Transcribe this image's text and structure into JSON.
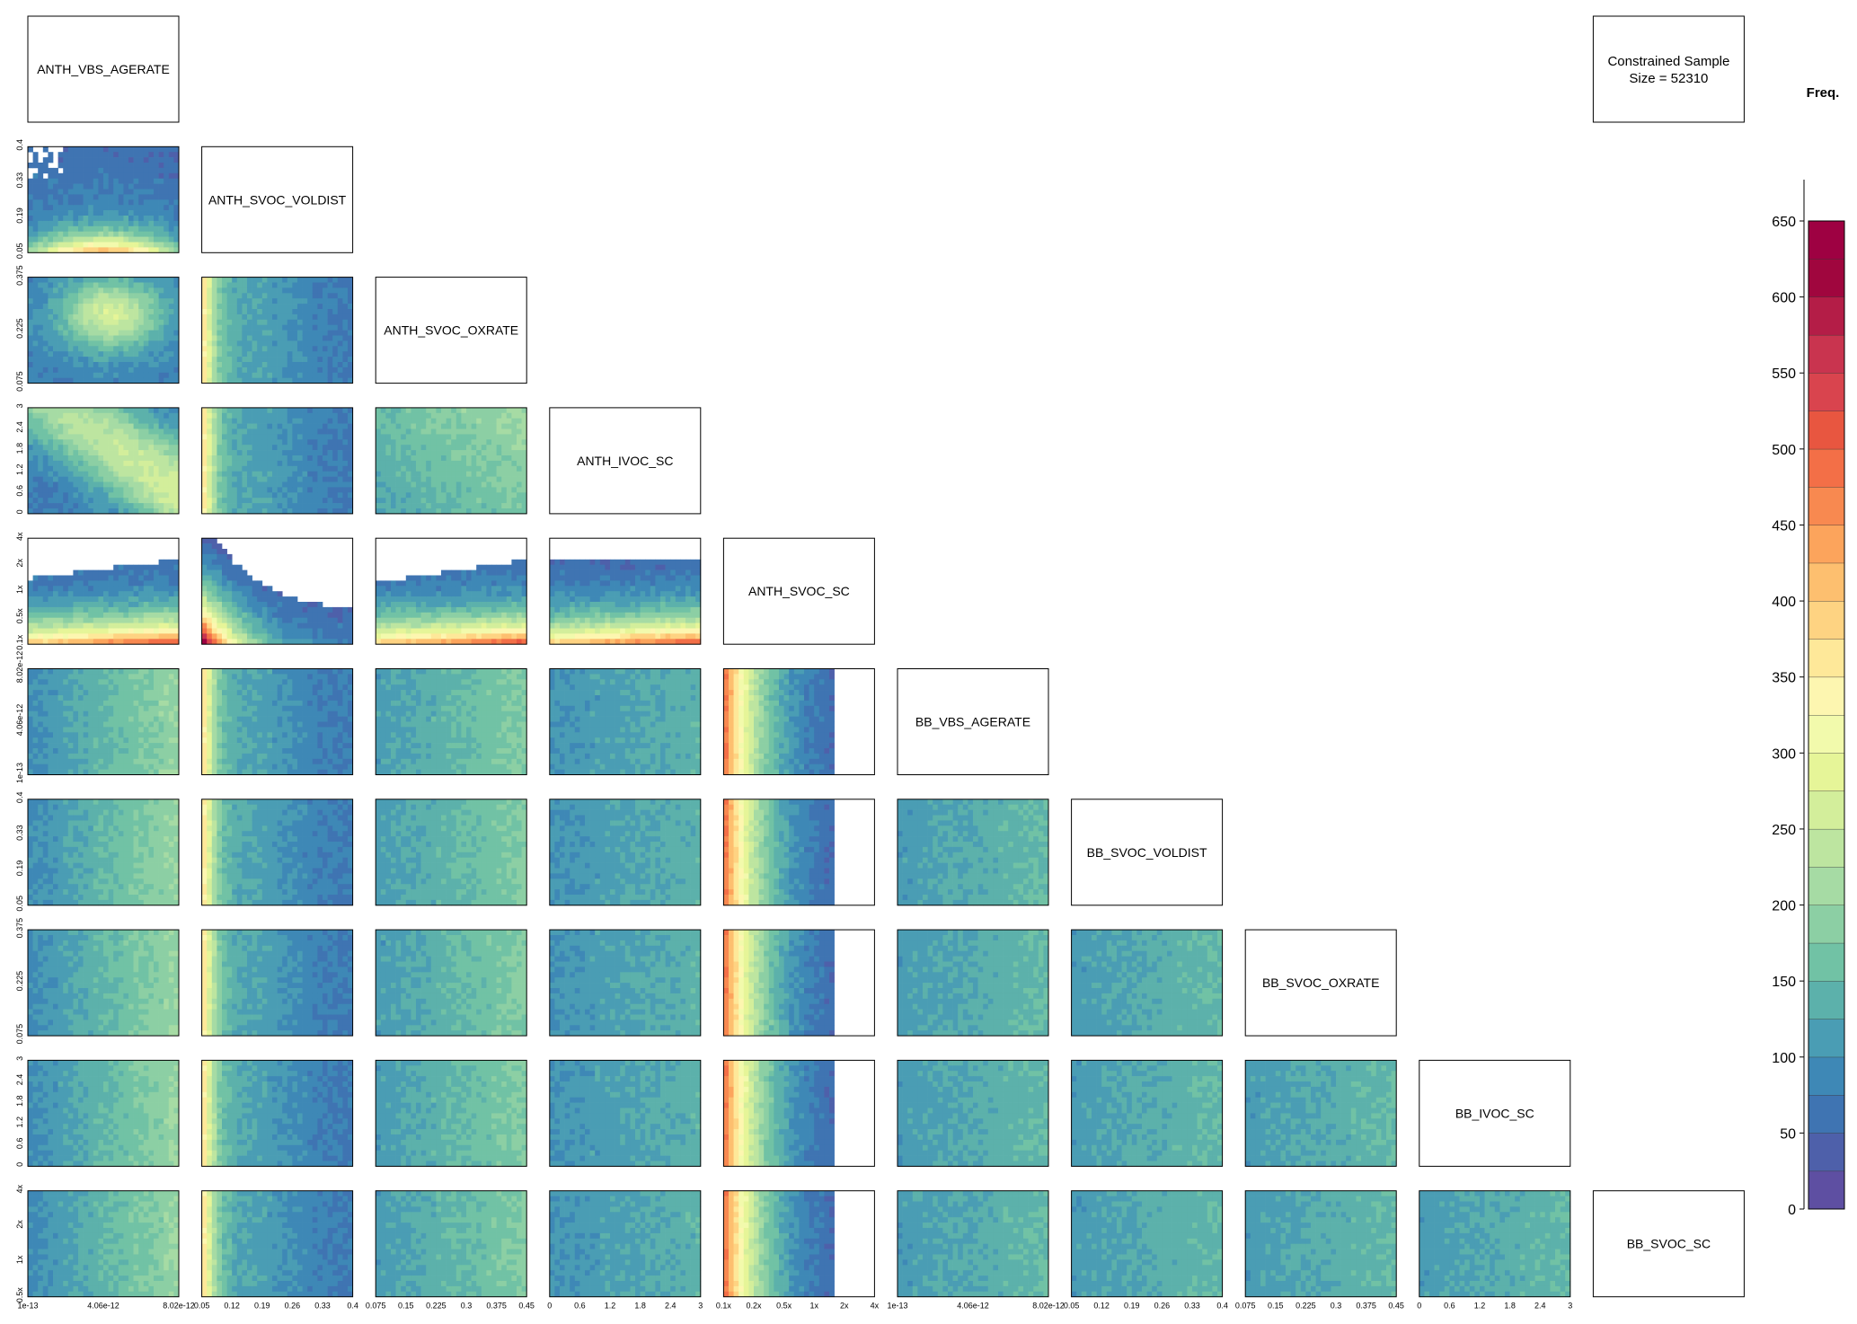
{
  "chart_data": {
    "type": "heatmap",
    "layout": "lower-triangular pairwise marginal density matrix",
    "parameters": [
      "ANTH_VBS_AGERATE",
      "ANTH_SVOC_VOLDIST",
      "ANTH_SVOC_OXRATE",
      "ANTH_IVOC_SC",
      "ANTH_SVOC_SC",
      "BB_VBS_AGERATE",
      "BB_SVOC_VOLDIST",
      "BB_SVOC_OXRATE",
      "BB_IVOC_SC",
      "BB_SVOC_SC"
    ],
    "sample_text": "Constrained Sample\nSize = 52310",
    "sample_line1": "Constrained Sample",
    "sample_line2": "Size = 52310",
    "colorbar": {
      "title": "Freq.",
      "min": 0,
      "max": 650,
      "step": 25,
      "ticks": [
        "0",
        "50",
        "100",
        "150",
        "200",
        "250",
        "300",
        "350",
        "400",
        "450",
        "500",
        "550",
        "600",
        "650"
      ],
      "colors": [
        "#5e4fa2",
        "#4e60aa",
        "#3f74b2",
        "#3e88b6",
        "#4a9db4",
        "#5cb1ab",
        "#71c2a5",
        "#8ccfa4",
        "#a6dba4",
        "#bde5a0",
        "#d3ee9b",
        "#e6f598",
        "#f2faac",
        "#fdf6b0",
        "#fee899",
        "#fed382",
        "#fdbf6f",
        "#fca45c",
        "#f88950",
        "#f36f47",
        "#e85640",
        "#d9444e",
        "#c9344f",
        "#b41d47",
        "#a0063e",
        "#9e0142"
      ]
    },
    "axis_ticks": {
      "ANTH_VBS_AGERATE": [
        "1e-13",
        "4.06e-12",
        "8.02e-12"
      ],
      "ANTH_SVOC_VOLDIST": [
        "0.05",
        "0.12",
        "0.19",
        "0.26",
        "0.33",
        "0.4"
      ],
      "ANTH_SVOC_OXRATE": [
        "0.075",
        "0.15",
        "0.225",
        "0.3",
        "0.375",
        "0.45"
      ],
      "ANTH_IVOC_SC": [
        "0",
        "0.6",
        "1.2",
        "1.8",
        "2.4",
        "3"
      ],
      "ANTH_SVOC_SC": [
        "0.1x",
        "0.2x",
        "0.5x",
        "1x",
        "2x",
        "4x"
      ],
      "BB_VBS_AGERATE": [
        "1e-13",
        "4.06e-12",
        "8.02e-12"
      ],
      "BB_SVOC_VOLDIST": [
        "0.05",
        "0.12",
        "0.19",
        "0.26",
        "0.33",
        "0.4"
      ],
      "BB_SVOC_OXRATE": [
        "0.075",
        "0.15",
        "0.225",
        "0.3",
        "0.375",
        "0.45"
      ],
      "BB_IVOC_SC": [
        "0",
        "0.6",
        "1.2",
        "1.8",
        "2.4",
        "3"
      ]
    },
    "y_axis_ticks": {
      "ANTH_SVOC_VOLDIST": [
        "0.05",
        "0.19",
        "0.33",
        "0.4"
      ],
      "ANTH_SVOC_OXRATE": [
        "0.075",
        "0.225",
        "0.375"
      ],
      "ANTH_IVOC_SC": [
        "0",
        "0.6",
        "1.2",
        "1.8",
        "2.4",
        "3"
      ],
      "ANTH_SVOC_SC": [
        "0.1x",
        "0.5x",
        "1x",
        "2x",
        "4x"
      ],
      "BB_VBS_AGERATE": [
        "1e-13",
        "4.06e-12",
        "8.02e-12"
      ],
      "BB_SVOC_VOLDIST": [
        "0.05",
        "0.19",
        "0.33",
        "0.4"
      ],
      "BB_SVOC_OXRATE": [
        "0.075",
        "0.225",
        "0.375"
      ],
      "BB_IVOC_SC": [
        "0",
        "0.6",
        "1.2",
        "1.8",
        "2.4",
        "3"
      ],
      "BB_SVOC_SC": [
        "0.5x",
        "1x",
        "2x",
        "4x"
      ]
    }
  }
}
